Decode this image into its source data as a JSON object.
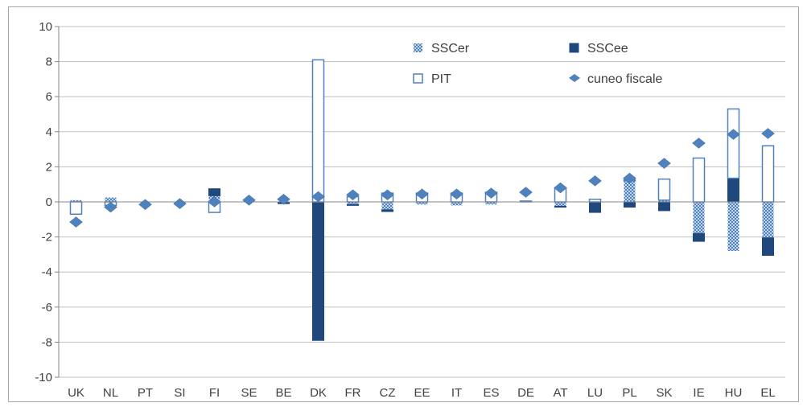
{
  "chart_data": {
    "type": "bar",
    "stacked": true,
    "categories": [
      "UK",
      "NL",
      "PT",
      "SI",
      "FI",
      "SE",
      "BE",
      "DK",
      "FR",
      "CZ",
      "EE",
      "IT",
      "ES",
      "DE",
      "AT",
      "LU",
      "PL",
      "SK",
      "IE",
      "HU",
      "EL"
    ],
    "ylim": [
      -10,
      10
    ],
    "yticks": [
      -10,
      -8,
      -6,
      -4,
      -2,
      0,
      2,
      4,
      6,
      8,
      10
    ],
    "grid": true,
    "legend_position": "top-right",
    "series": [
      {
        "name": "SSCer",
        "kind": "bar",
        "style": "hatched",
        "color": "#4f81bd",
        "values": [
          0.1,
          0.25,
          0,
          0,
          0.35,
          0,
          0,
          0,
          -0.15,
          -0.45,
          -0.15,
          -0.2,
          -0.15,
          0,
          -0.25,
          0,
          1.2,
          0.1,
          -1.8,
          -2.8,
          -2.05
        ]
      },
      {
        "name": "SSCee",
        "kind": "bar",
        "style": "solid",
        "color": "#1f497d",
        "values": [
          0,
          0,
          0,
          0,
          0.4,
          0,
          -0.1,
          -7.9,
          -0.05,
          -0.1,
          0,
          0,
          0,
          0,
          -0.05,
          -0.6,
          -0.3,
          -0.5,
          -0.45,
          1.35,
          -1.0
        ]
      },
      {
        "name": "PIT",
        "kind": "bar",
        "style": "outline",
        "color": "#4f81bd",
        "values": [
          -0.7,
          -0.2,
          0,
          0,
          -0.6,
          0,
          0,
          8.1,
          0.3,
          0.5,
          0.5,
          0.5,
          0.55,
          0.05,
          0.8,
          0.15,
          0.05,
          1.2,
          2.5,
          3.95,
          3.2
        ]
      },
      {
        "name": "cuneo fiscale",
        "kind": "marker",
        "style": "diamond",
        "color": "#4f81bd",
        "values": [
          -1.15,
          -0.3,
          -0.15,
          -0.1,
          0.0,
          0.1,
          0.15,
          0.3,
          0.4,
          0.4,
          0.45,
          0.45,
          0.5,
          0.55,
          0.8,
          1.2,
          1.35,
          2.2,
          3.35,
          3.85,
          3.9
        ]
      }
    ]
  }
}
